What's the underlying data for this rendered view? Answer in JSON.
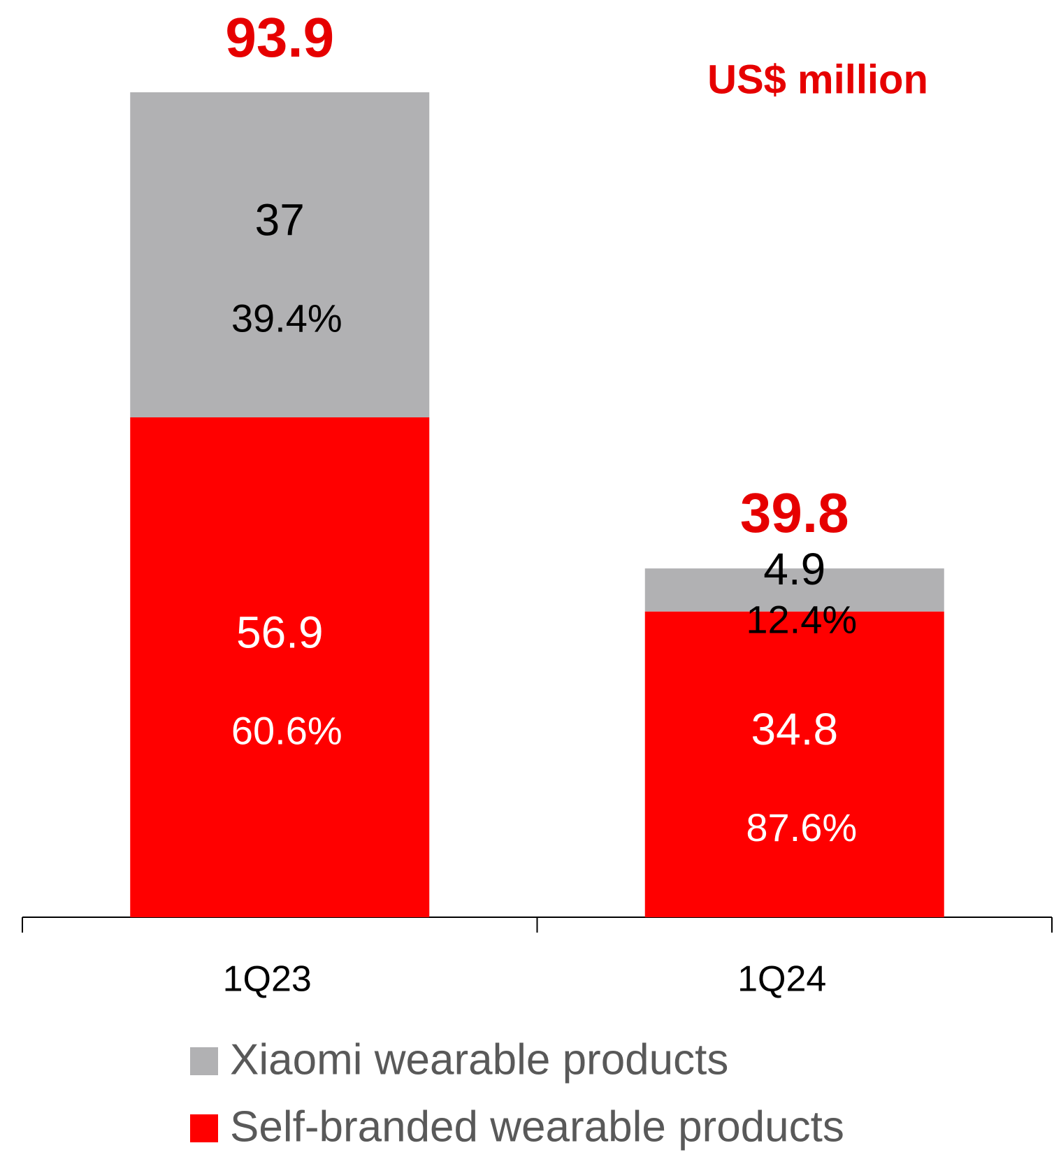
{
  "chart_data": {
    "type": "stacked_bar",
    "subtitle": "US$ million",
    "categories": [
      "1Q23",
      "1Q24"
    ],
    "totals": [
      93.9,
      39.8
    ],
    "series": [
      {
        "name": "Self-branded wearable products",
        "color": "#ff0000",
        "values": [
          56.9,
          34.8
        ],
        "share_labels": [
          "60.6%",
          "87.6%"
        ],
        "label_color": "#ffffff"
      },
      {
        "name": "Xiaomi wearable products",
        "color": "#b1b1b3",
        "values": [
          37.0,
          4.9
        ],
        "share_labels": [
          "39.4%",
          "12.4%"
        ],
        "label_color": "#000000"
      }
    ],
    "legend": "bottom"
  }
}
